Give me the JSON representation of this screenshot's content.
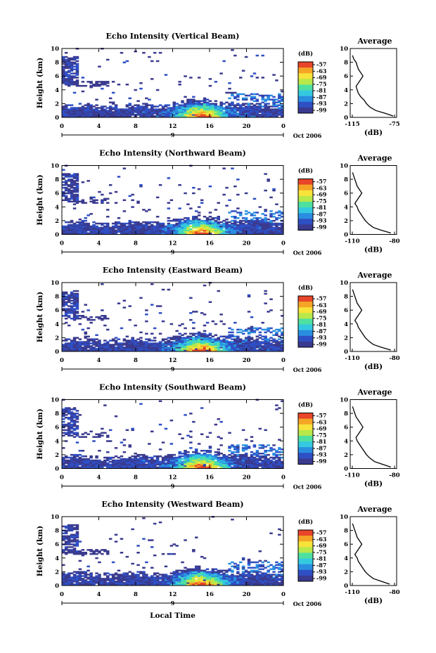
{
  "figure": {
    "x_label": "Local Time",
    "date_label": "Oct 2006",
    "day_marker": "9",
    "cbar_unit": "(dB)",
    "avg_title": "Average",
    "avg_xlabel": "(dB)",
    "colors": [
      "#3a3a8f",
      "#2f4fc4",
      "#2a8ee0",
      "#35c9e0",
      "#4fe0a0",
      "#b8e84a",
      "#f7e33a",
      "#f5a526",
      "#e8452a"
    ]
  },
  "chart_data": [
    {
      "type": "heatmap",
      "title": "Echo Intensity (Vertical Beam)",
      "ylabel": "Height (km)",
      "xlim": [
        0,
        24
      ],
      "ylim": [
        0,
        10
      ],
      "x_ticks": [
        "0",
        "4",
        "8",
        "12",
        "16",
        "20",
        "0"
      ],
      "y_ticks": [
        "0",
        "2",
        "4",
        "6",
        "8",
        "10"
      ],
      "cbar_ticks": [
        "-57",
        "-63",
        "-69",
        "-75",
        "-81",
        "-87",
        "-93",
        "-99"
      ],
      "avg_profile": {
        "xlim": [
          -115,
          -75
        ],
        "x_ticks": [
          "-115",
          "-75"
        ],
        "y_ticks": [
          "0",
          "2",
          "4",
          "6",
          "8",
          "10"
        ],
        "height_km": [
          0.2,
          0.6,
          1.0,
          1.5,
          2.0,
          2.5,
          3.0,
          3.5,
          4.0,
          4.5,
          5.0,
          5.5,
          6.0,
          6.5,
          7.0,
          7.5,
          8.0,
          8.5,
          9.0
        ],
        "db": [
          -78,
          -85,
          -93,
          -98,
          -101,
          -103,
          -106,
          -108,
          -109,
          -110,
          -108,
          -106,
          -104,
          -106,
          -108,
          -109,
          -110,
          -112,
          -113
        ]
      }
    },
    {
      "type": "heatmap",
      "title": "Echo Intensity (Northward Beam)",
      "ylabel": "Height (km)",
      "xlim": [
        0,
        24
      ],
      "ylim": [
        0,
        10
      ],
      "x_ticks": [
        "0",
        "4",
        "8",
        "12",
        "16",
        "20",
        "0"
      ],
      "y_ticks": [
        "0",
        "2",
        "4",
        "6",
        "8",
        "10"
      ],
      "cbar_ticks": [
        "-57",
        "-63",
        "-69",
        "-75",
        "-81",
        "-87",
        "-93",
        "-99"
      ],
      "avg_profile": {
        "xlim": [
          -115,
          -75
        ],
        "x_ticks": [
          "-110",
          "-80"
        ],
        "y_ticks": [
          "0",
          "2",
          "4",
          "6",
          "8",
          "10"
        ],
        "height_km": [
          0.2,
          0.6,
          1.0,
          1.5,
          2.0,
          2.5,
          3.0,
          3.5,
          4.0,
          4.5,
          5.0,
          5.5,
          6.0,
          6.5,
          7.0,
          7.5,
          8.0,
          8.5,
          9.0
        ],
        "db": [
          -80,
          -88,
          -95,
          -99,
          -102,
          -104,
          -106,
          -108,
          -109,
          -111,
          -109,
          -107,
          -105,
          -107,
          -109,
          -110,
          -111,
          -112,
          -113
        ]
      }
    },
    {
      "type": "heatmap",
      "title": "Echo Intensity (Eastward Beam)",
      "ylabel": "Height (km)",
      "xlim": [
        0,
        24
      ],
      "ylim": [
        0,
        10
      ],
      "x_ticks": [
        "0",
        "4",
        "8",
        "12",
        "16",
        "20",
        "0"
      ],
      "y_ticks": [
        "0",
        "2",
        "4",
        "6",
        "8",
        "10"
      ],
      "cbar_ticks": [
        "-57",
        "-63",
        "-69",
        "-75",
        "-81",
        "-87",
        "-93",
        "-99"
      ],
      "avg_profile": {
        "xlim": [
          -115,
          -75
        ],
        "x_ticks": [
          "-110",
          "-80"
        ],
        "y_ticks": [
          "0",
          "2",
          "4",
          "6",
          "8",
          "10"
        ],
        "height_km": [
          0.2,
          0.6,
          1.0,
          1.5,
          2.0,
          2.5,
          3.0,
          3.5,
          4.0,
          4.5,
          5.0,
          5.5,
          6.0,
          6.5,
          7.0,
          7.5,
          8.0,
          8.5,
          9.0
        ],
        "db": [
          -80,
          -88,
          -95,
          -99,
          -102,
          -104,
          -106,
          -108,
          -109,
          -111,
          -109,
          -107,
          -105,
          -107,
          -109,
          -110,
          -111,
          -112,
          -113
        ]
      }
    },
    {
      "type": "heatmap",
      "title": "Echo Intensity (Southward Beam)",
      "ylabel": "Height (km)",
      "xlim": [
        0,
        24
      ],
      "ylim": [
        0,
        10
      ],
      "x_ticks": [
        "0",
        "4",
        "8",
        "12",
        "16",
        "20",
        "0"
      ],
      "y_ticks": [
        "0",
        "2",
        "4",
        "6",
        "8",
        "10"
      ],
      "cbar_ticks": [
        "-57",
        "-63",
        "-69",
        "-75",
        "-81",
        "-87",
        "-93",
        "-99"
      ],
      "avg_profile": {
        "xlim": [
          -115,
          -75
        ],
        "x_ticks": [
          "-110",
          "-80"
        ],
        "y_ticks": [
          "0",
          "2",
          "4",
          "6",
          "8",
          "10"
        ],
        "height_km": [
          0.2,
          0.6,
          1.0,
          1.5,
          2.0,
          2.5,
          3.0,
          3.5,
          4.0,
          4.5,
          5.0,
          5.5,
          6.0,
          6.5,
          7.0,
          7.5,
          8.0,
          8.5,
          9.0
        ],
        "db": [
          -80,
          -87,
          -94,
          -98,
          -101,
          -103,
          -105,
          -107,
          -109,
          -110,
          -108,
          -106,
          -104,
          -106,
          -108,
          -110,
          -111,
          -112,
          -113
        ]
      }
    },
    {
      "type": "heatmap",
      "title": "Echo Intensity (Westward Beam)",
      "ylabel": "Height (km)",
      "xlim": [
        0,
        24
      ],
      "ylim": [
        0,
        10
      ],
      "x_ticks": [
        "0",
        "4",
        "8",
        "12",
        "16",
        "20",
        "0"
      ],
      "y_ticks": [
        "0",
        "2",
        "4",
        "6",
        "8",
        "10"
      ],
      "cbar_ticks": [
        "-57",
        "-63",
        "-69",
        "-75",
        "-81",
        "-87",
        "-93",
        "-99"
      ],
      "avg_profile": {
        "xlim": [
          -115,
          -75
        ],
        "x_ticks": [
          "-110",
          "-80"
        ],
        "y_ticks": [
          "0",
          "2",
          "4",
          "6",
          "8",
          "10"
        ],
        "height_km": [
          0.2,
          0.6,
          1.0,
          1.5,
          2.0,
          2.5,
          3.0,
          3.5,
          4.0,
          4.5,
          5.0,
          5.5,
          6.0,
          6.5,
          7.0,
          7.5,
          8.0,
          8.5,
          9.0
        ],
        "db": [
          -81,
          -88,
          -95,
          -99,
          -102,
          -104,
          -106,
          -108,
          -109,
          -111,
          -109,
          -107,
          -105,
          -107,
          -109,
          -110,
          -111,
          -112,
          -113
        ]
      }
    }
  ]
}
